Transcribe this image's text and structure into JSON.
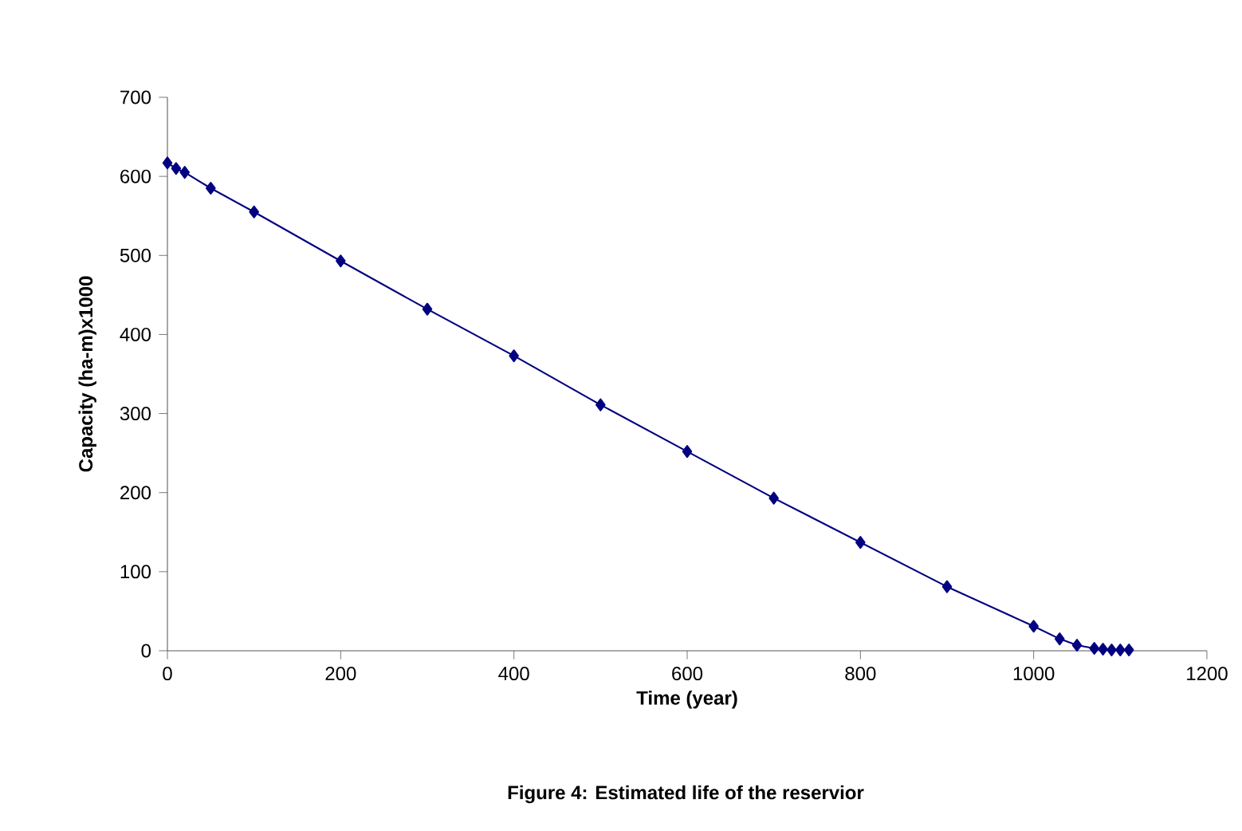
{
  "chart_data": {
    "type": "line",
    "xlabel": "Time (year)",
    "ylabel": "Capacity (ha-m)x1000",
    "annotations": [
      "Figure 4: Estimated life of the reservior"
    ],
    "series": [
      {
        "color": "#000080",
        "x": [
          0,
          10,
          20,
          50,
          100,
          200,
          300,
          400,
          500,
          600,
          700,
          800,
          900,
          1000,
          1030,
          1050,
          1070,
          1080,
          1090,
          1100,
          1110
        ],
        "values": [
          617,
          610,
          605,
          585,
          555,
          493,
          432,
          373,
          311,
          252,
          193,
          137,
          81,
          31,
          15,
          7,
          3,
          2,
          1,
          1,
          1
        ]
      }
    ],
    "xlim": [
      0,
      1200
    ],
    "ylim": [
      0,
      700
    ],
    "xticks": [
      0,
      200,
      400,
      600,
      800,
      1000,
      1200
    ],
    "yticks": [
      0,
      100,
      200,
      300,
      400,
      500,
      600,
      700
    ],
    "marker": "diamond",
    "line_style": "solid",
    "grid": false
  }
}
